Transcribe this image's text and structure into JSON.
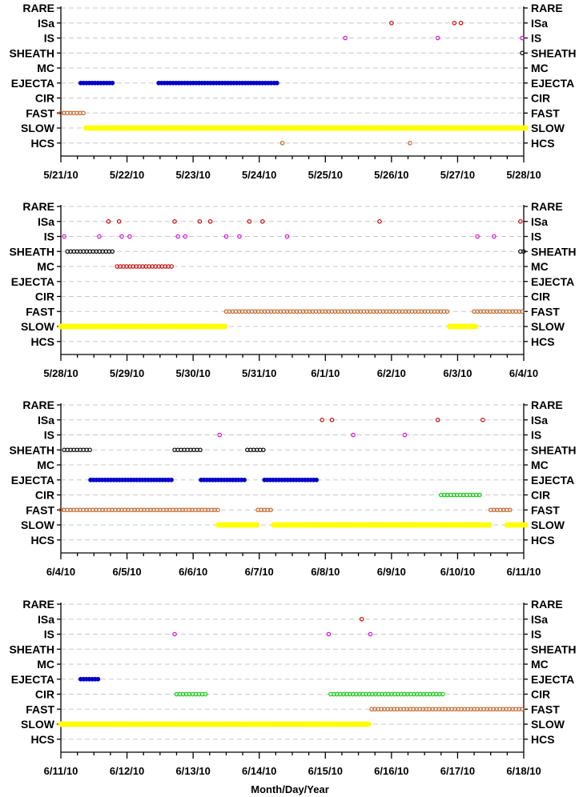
{
  "chart_data": {
    "type": "scatter",
    "categories": [
      "RARE",
      "ISa",
      "IS",
      "SHEATH",
      "MC",
      "EJECTA",
      "CIR",
      "FAST",
      "SLOW",
      "HCS"
    ],
    "xlabel": "Month/Day/Year",
    "grid": true,
    "category_colors": {
      "RARE": "#000000",
      "ISa": "#cc0000",
      "IS": "#dd00dd",
      "SHEATH": "#000000",
      "MC": "#cc0000",
      "EJECTA": "#0000cc",
      "CIR": "#00cc00",
      "FAST": "#c06020",
      "SLOW": "#ffff00",
      "HCS": "#c06020"
    },
    "panels": [
      {
        "xlim": [
          "5/21/10",
          "5/28/10"
        ],
        "x_ticks": [
          "5/21/10",
          "5/22/10",
          "5/23/10",
          "5/24/10",
          "5/25/10",
          "5/26/10",
          "5/27/10",
          "5/28/10"
        ],
        "points": [
          {
            "category": "ISa",
            "days": [
              5.0,
              5.95,
              6.05
            ]
          },
          {
            "category": "IS",
            "days": [
              4.3,
              5.7,
              7.0
            ]
          },
          {
            "category": "SHEATH",
            "days": [
              7.0
            ]
          },
          {
            "category": "HCS",
            "days": [
              3.35,
              5.28
            ]
          }
        ],
        "segments": [
          {
            "category": "EJECTA",
            "start": 0.3,
            "end": 0.82
          },
          {
            "category": "EJECTA",
            "start": 1.48,
            "end": 3.28
          },
          {
            "category": "FAST",
            "start": 0.0,
            "end": 0.35
          },
          {
            "category": "SLOW",
            "start": 0.38,
            "end": 7.05
          }
        ]
      },
      {
        "xlim": [
          "5/28/10",
          "6/4/10"
        ],
        "x_ticks": [
          "5/28/10",
          "5/29/10",
          "5/30/10",
          "5/31/10",
          "6/1/10",
          "6/2/10",
          "6/3/10",
          "6/4/10"
        ],
        "points": [
          {
            "category": "ISa",
            "days": [
              0.72,
              0.88,
              1.72,
              2.1,
              2.26,
              2.85,
              3.05,
              4.82,
              6.95
            ]
          },
          {
            "category": "IS",
            "days": [
              0.05,
              0.58,
              0.92,
              1.04,
              1.77,
              1.88,
              2.5,
              2.7,
              3.42,
              6.3,
              6.55
            ]
          },
          {
            "category": "HCS",
            "days": []
          }
        ],
        "segments": [
          {
            "category": "SHEATH",
            "start": 0.1,
            "end": 0.82
          },
          {
            "category": "SHEATH",
            "start": 6.95,
            "end": 7.02
          },
          {
            "category": "MC",
            "start": 0.85,
            "end": 1.72
          },
          {
            "category": "FAST",
            "start": 2.5,
            "end": 5.85
          },
          {
            "category": "FAST",
            "start": 6.25,
            "end": 7.02
          },
          {
            "category": "SLOW",
            "start": 0.0,
            "end": 2.5
          },
          {
            "category": "SLOW",
            "start": 5.88,
            "end": 6.28
          }
        ]
      },
      {
        "xlim": [
          "6/4/10",
          "6/11/10"
        ],
        "x_ticks": [
          "6/4/10",
          "6/5/10",
          "6/6/10",
          "6/7/10",
          "6/8/10",
          "6/9/10",
          "6/10/10",
          "6/11/10"
        ],
        "points": [
          {
            "category": "ISa",
            "days": [
              3.95,
              4.1,
              5.7,
              6.38
            ]
          },
          {
            "category": "IS",
            "days": [
              2.4,
              4.42,
              5.2
            ]
          }
        ],
        "segments": [
          {
            "category": "SHEATH",
            "start": 0.05,
            "end": 0.45
          },
          {
            "category": "SHEATH",
            "start": 1.72,
            "end": 2.12
          },
          {
            "category": "SHEATH",
            "start": 2.82,
            "end": 3.08
          },
          {
            "category": "EJECTA",
            "start": 0.45,
            "end": 1.68
          },
          {
            "category": "EJECTA",
            "start": 2.12,
            "end": 2.78
          },
          {
            "category": "EJECTA",
            "start": 3.08,
            "end": 3.88
          },
          {
            "category": "CIR",
            "start": 5.75,
            "end": 6.35
          },
          {
            "category": "FAST",
            "start": 0.0,
            "end": 2.38
          },
          {
            "category": "FAST",
            "start": 2.98,
            "end": 3.22
          },
          {
            "category": "FAST",
            "start": 6.5,
            "end": 6.8
          },
          {
            "category": "SLOW",
            "start": 2.38,
            "end": 2.98
          },
          {
            "category": "SLOW",
            "start": 3.22,
            "end": 6.48
          },
          {
            "category": "SLOW",
            "start": 6.75,
            "end": 7.05
          }
        ]
      },
      {
        "xlim": [
          "6/11/10",
          "6/18/10"
        ],
        "x_ticks": [
          "6/11/10",
          "6/12/10",
          "6/13/10",
          "6/14/10",
          "6/15/10",
          "6/16/10",
          "6/17/10",
          "6/18/10"
        ],
        "points": [
          {
            "category": "ISa",
            "days": [
              4.55
            ]
          },
          {
            "category": "IS",
            "days": [
              1.72,
              4.05,
              4.68
            ]
          }
        ],
        "segments": [
          {
            "category": "EJECTA",
            "start": 0.3,
            "end": 0.58
          },
          {
            "category": "CIR",
            "start": 1.75,
            "end": 2.2
          },
          {
            "category": "CIR",
            "start": 4.08,
            "end": 5.82
          },
          {
            "category": "FAST",
            "start": 4.7,
            "end": 7.02
          },
          {
            "category": "SLOW",
            "start": 0.0,
            "end": 4.68
          }
        ]
      }
    ]
  }
}
